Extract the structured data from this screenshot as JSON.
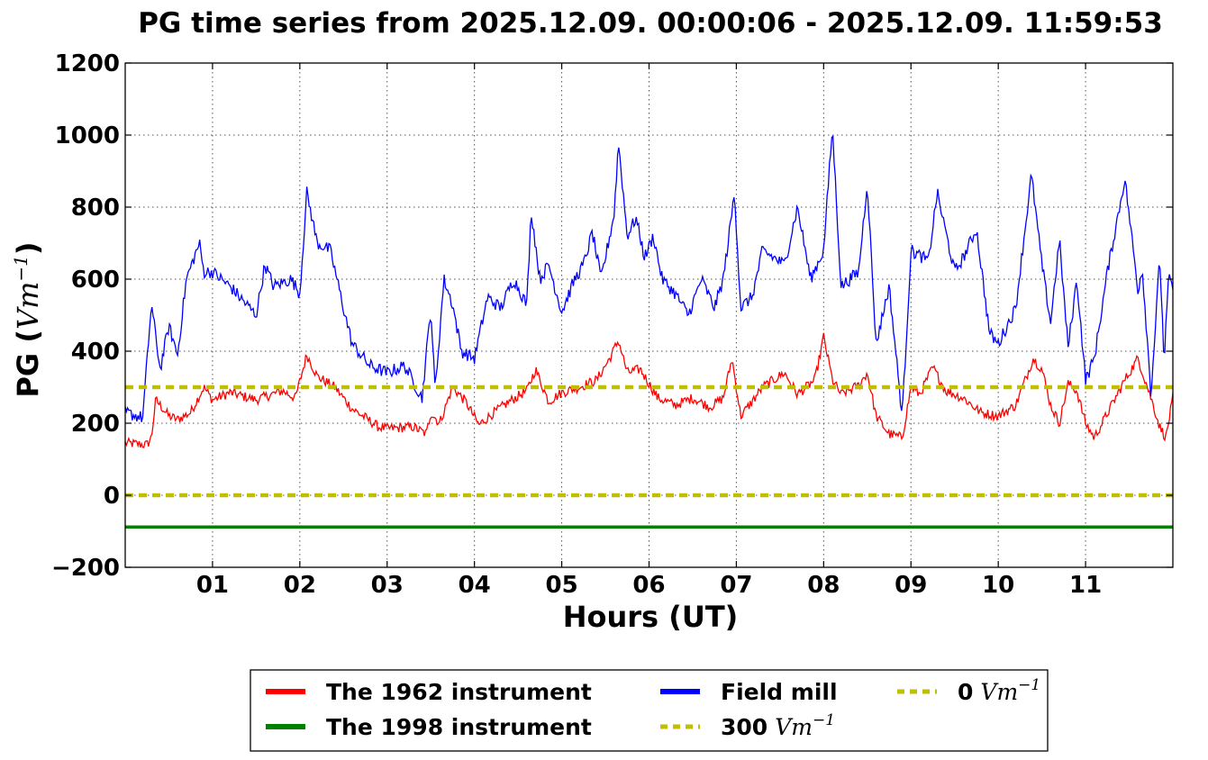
{
  "chart_data": {
    "type": "line",
    "title": "PG time series from 2025.12.09. 00:00:06 - 2025.12.09. 11:59:53",
    "xlabel": "Hours (UT)",
    "ylabel": "PG (",
    "ylabel_unit": "Vm",
    "ylabel_exp": "−1",
    "ylabel_close": ")",
    "xlim": [
      0,
      12
    ],
    "ylim": [
      -200,
      1200
    ],
    "yticks": [
      -200,
      0,
      200,
      400,
      600,
      800,
      1000,
      1200
    ],
    "ytick_labels": [
      "−200",
      "0",
      "200",
      "400",
      "600",
      "800",
      "1000",
      "1200"
    ],
    "xticks": [
      1,
      2,
      3,
      4,
      5,
      6,
      7,
      8,
      9,
      10,
      11
    ],
    "xtick_labels": [
      "01",
      "02",
      "03",
      "04",
      "05",
      "06",
      "07",
      "08",
      "09",
      "10",
      "11"
    ],
    "grid": true,
    "legend_position": "bottom",
    "series": [
      {
        "name": "The 1962 instrument",
        "color": "#ff0000",
        "x": [
          0,
          0.25,
          0.3,
          0.35,
          0.5,
          0.6,
          0.75,
          0.9,
          1.0,
          1.2,
          1.5,
          1.8,
          1.95,
          2.08,
          2.2,
          2.4,
          2.6,
          2.9,
          3.0,
          3.3,
          3.45,
          3.5,
          3.6,
          3.75,
          3.9,
          4.05,
          4.2,
          4.4,
          4.6,
          4.7,
          4.85,
          5.0,
          5.2,
          5.4,
          5.55,
          5.65,
          5.75,
          5.9,
          6.1,
          6.3,
          6.5,
          6.7,
          6.85,
          6.95,
          7.05,
          7.15,
          7.3,
          7.55,
          7.7,
          7.9,
          8.0,
          8.1,
          8.2,
          8.4,
          8.5,
          8.6,
          8.75,
          8.9,
          9.0,
          9.1,
          9.25,
          9.4,
          9.6,
          9.8,
          10.0,
          10.2,
          10.4,
          10.5,
          10.6,
          10.7,
          10.8,
          10.9,
          11.0,
          11.1,
          11.3,
          11.45,
          11.6,
          11.75,
          11.85,
          11.92,
          12.0
        ],
        "values": [
          145,
          140,
          160,
          265,
          220,
          210,
          230,
          300,
          265,
          285,
          265,
          290,
          270,
          390,
          330,
          300,
          240,
          190,
          185,
          190,
          170,
          230,
          200,
          300,
          260,
          195,
          225,
          260,
          290,
          350,
          260,
          285,
          300,
          320,
          380,
          430,
          340,
          350,
          270,
          250,
          270,
          245,
          270,
          380,
          220,
          250,
          300,
          340,
          280,
          320,
          440,
          320,
          280,
          305,
          340,
          220,
          170,
          160,
          300,
          280,
          355,
          290,
          270,
          230,
          220,
          250,
          380,
          350,
          250,
          200,
          310,
          290,
          200,
          160,
          250,
          320,
          380,
          270,
          190,
          160,
          270
        ]
      },
      {
        "name": "The 1998 instrument",
        "color": "#008000",
        "x": [
          0,
          12
        ],
        "values": [
          -88,
          -88
        ]
      },
      {
        "name": "Field mill",
        "color": "#0000ff",
        "x": [
          0,
          0.2,
          0.3,
          0.4,
          0.5,
          0.6,
          0.7,
          0.85,
          0.9,
          1.0,
          1.2,
          1.5,
          1.6,
          1.7,
          1.9,
          2.0,
          2.08,
          2.2,
          2.35,
          2.5,
          2.6,
          2.8,
          3.0,
          3.2,
          3.4,
          3.5,
          3.55,
          3.65,
          3.75,
          3.85,
          4.0,
          4.15,
          4.3,
          4.45,
          4.6,
          4.65,
          4.75,
          4.85,
          5.0,
          5.15,
          5.25,
          5.35,
          5.45,
          5.6,
          5.65,
          5.75,
          5.85,
          5.95,
          6.05,
          6.15,
          6.3,
          6.45,
          6.6,
          6.75,
          6.85,
          6.98,
          7.05,
          7.18,
          7.3,
          7.55,
          7.7,
          7.85,
          8.0,
          8.1,
          8.2,
          8.4,
          8.5,
          8.6,
          8.75,
          8.9,
          9.0,
          9.2,
          9.3,
          9.5,
          9.6,
          9.75,
          9.9,
          10.0,
          10.2,
          10.38,
          10.5,
          10.6,
          10.7,
          10.8,
          10.9,
          11.0,
          11.1,
          11.25,
          11.45,
          11.6,
          11.65,
          11.75,
          11.85,
          11.9,
          11.95,
          12.0
        ],
        "values": [
          230,
          215,
          530,
          350,
          470,
          390,
          600,
          700,
          620,
          620,
          580,
          500,
          640,
          580,
          600,
          560,
          840,
          700,
          680,
          520,
          420,
          360,
          340,
          360,
          270,
          520,
          290,
          600,
          530,
          400,
          380,
          550,
          520,
          600,
          530,
          790,
          600,
          640,
          510,
          600,
          640,
          730,
          600,
          780,
          980,
          720,
          770,
          660,
          720,
          600,
          560,
          500,
          600,
          520,
          600,
          840,
          520,
          550,
          680,
          640,
          800,
          600,
          680,
          1020,
          580,
          620,
          870,
          420,
          580,
          220,
          680,
          650,
          840,
          620,
          660,
          740,
          450,
          420,
          520,
          890,
          640,
          480,
          710,
          410,
          600,
          320,
          380,
          620,
          880,
          570,
          630,
          280,
          660,
          370,
          600,
          580
        ]
      },
      {
        "name": "300",
        "name_unit": "Vm",
        "name_exp": "−1",
        "color": "#bfbf00",
        "x": [
          0,
          12
        ],
        "values": [
          300,
          300
        ]
      },
      {
        "name": "0",
        "name_unit": "Vm",
        "name_exp": "−1",
        "color": "#bfbf00",
        "x": [
          0,
          12
        ],
        "values": [
          0,
          0
        ]
      }
    ]
  }
}
